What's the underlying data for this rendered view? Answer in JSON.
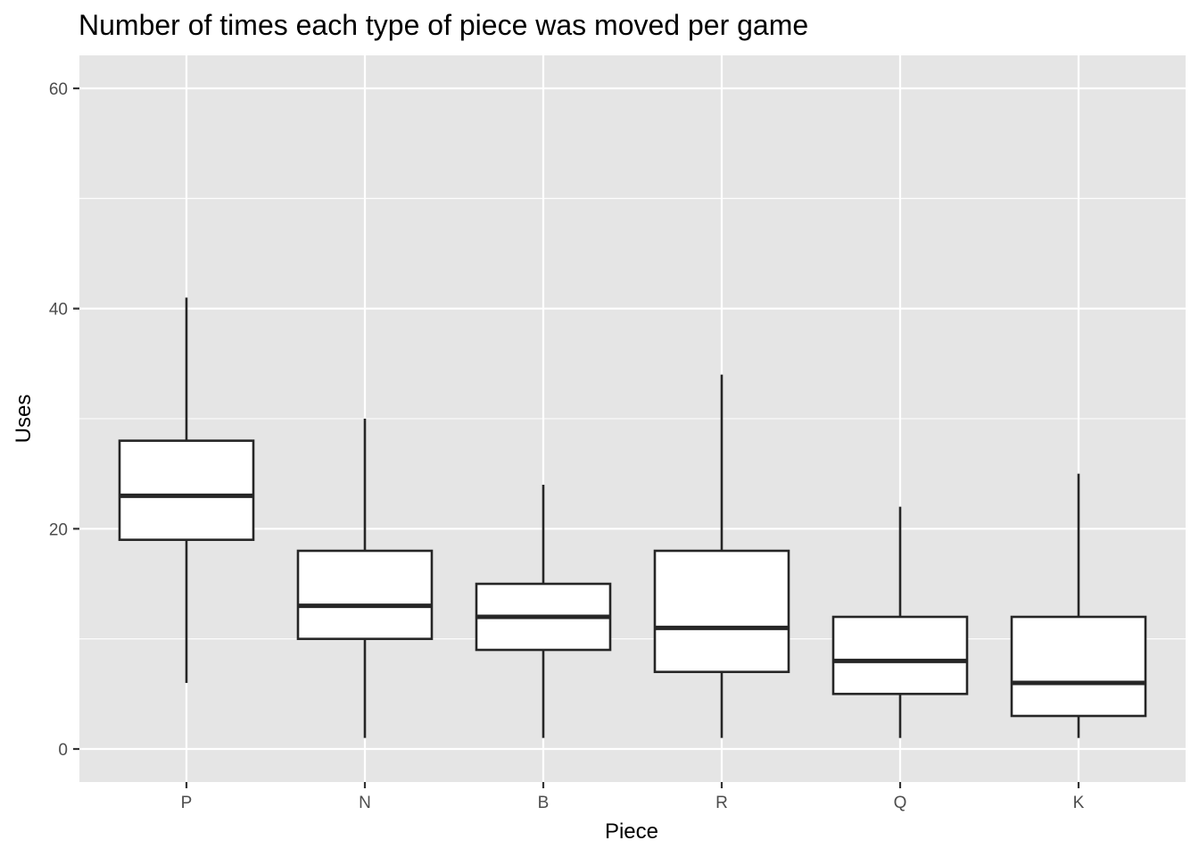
{
  "chart_data": {
    "type": "boxplot",
    "title": "Number of times each type of piece was moved per game",
    "xlabel": "Piece",
    "ylabel": "Uses",
    "ylim": [
      -3,
      63
    ],
    "yticks": [
      0,
      20,
      40,
      60
    ],
    "yminor": [
      10,
      30,
      50
    ],
    "categories": [
      "P",
      "N",
      "B",
      "R",
      "Q",
      "K"
    ],
    "boxes": [
      {
        "category": "P",
        "min": 6,
        "q1": 19,
        "median": 23,
        "q3": 28,
        "max": 41
      },
      {
        "category": "N",
        "min": 1,
        "q1": 10,
        "median": 13,
        "q3": 18,
        "max": 30
      },
      {
        "category": "B",
        "min": 1,
        "q1": 9,
        "median": 12,
        "q3": 15,
        "max": 24
      },
      {
        "category": "R",
        "min": 1,
        "q1": 7,
        "median": 11,
        "q3": 18,
        "max": 34
      },
      {
        "category": "Q",
        "min": 1,
        "q1": 5,
        "median": 8,
        "q3": 12,
        "max": 22
      },
      {
        "category": "K",
        "min": 1,
        "q1": 3,
        "median": 6,
        "q3": 12,
        "max": 25
      }
    ],
    "grid": true,
    "legend": "none",
    "colors": {
      "panel": "#e5e5e5",
      "box_fill": "#ffffff",
      "box_line": "#262626"
    }
  }
}
